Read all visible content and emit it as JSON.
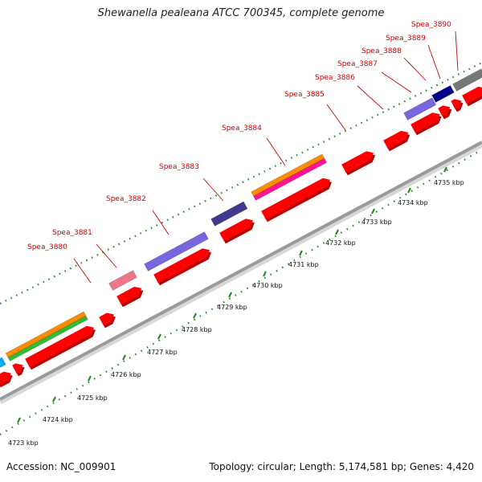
{
  "title": "Shewanella pealeana ATCC 700345, complete genome",
  "accession": "Accession: NC_009901",
  "summary": "Topology: circular; Length: 5,174,581 bp; Genes: 4,420",
  "scale_labels": [
    "4723 kbp",
    "4724 kbp",
    "4725 kbp",
    "4726 kbp",
    "4727 kbp",
    "4728 kbp",
    "4729 kbp",
    "4730 kbp",
    "4731 kbp",
    "4732 kbp",
    "4733 kbp",
    "4734 kbp",
    "4735 kbp"
  ],
  "gene_labels": [
    "Spea_3880",
    "Spea_3881",
    "Spea_3882",
    "Spea_3883",
    "Spea_3884",
    "Spea_3885",
    "Spea_3886",
    "Spea_3887",
    "Spea_3888",
    "Spea_3889",
    "Spea_3890"
  ],
  "colors": {
    "cds": "#ff0000",
    "label": "#cc0000",
    "tick": "#1a8c1a",
    "backbone": "#9a9a9a",
    "orange": "#ff8c00",
    "green": "#33bb33",
    "pink": "#ee7788",
    "slate": "#7766dd",
    "darkslate": "#3f3a8c",
    "magenta": "#ff1493",
    "navy": "#000088",
    "gray": "#777777",
    "cyan": "#00a8e8"
  }
}
